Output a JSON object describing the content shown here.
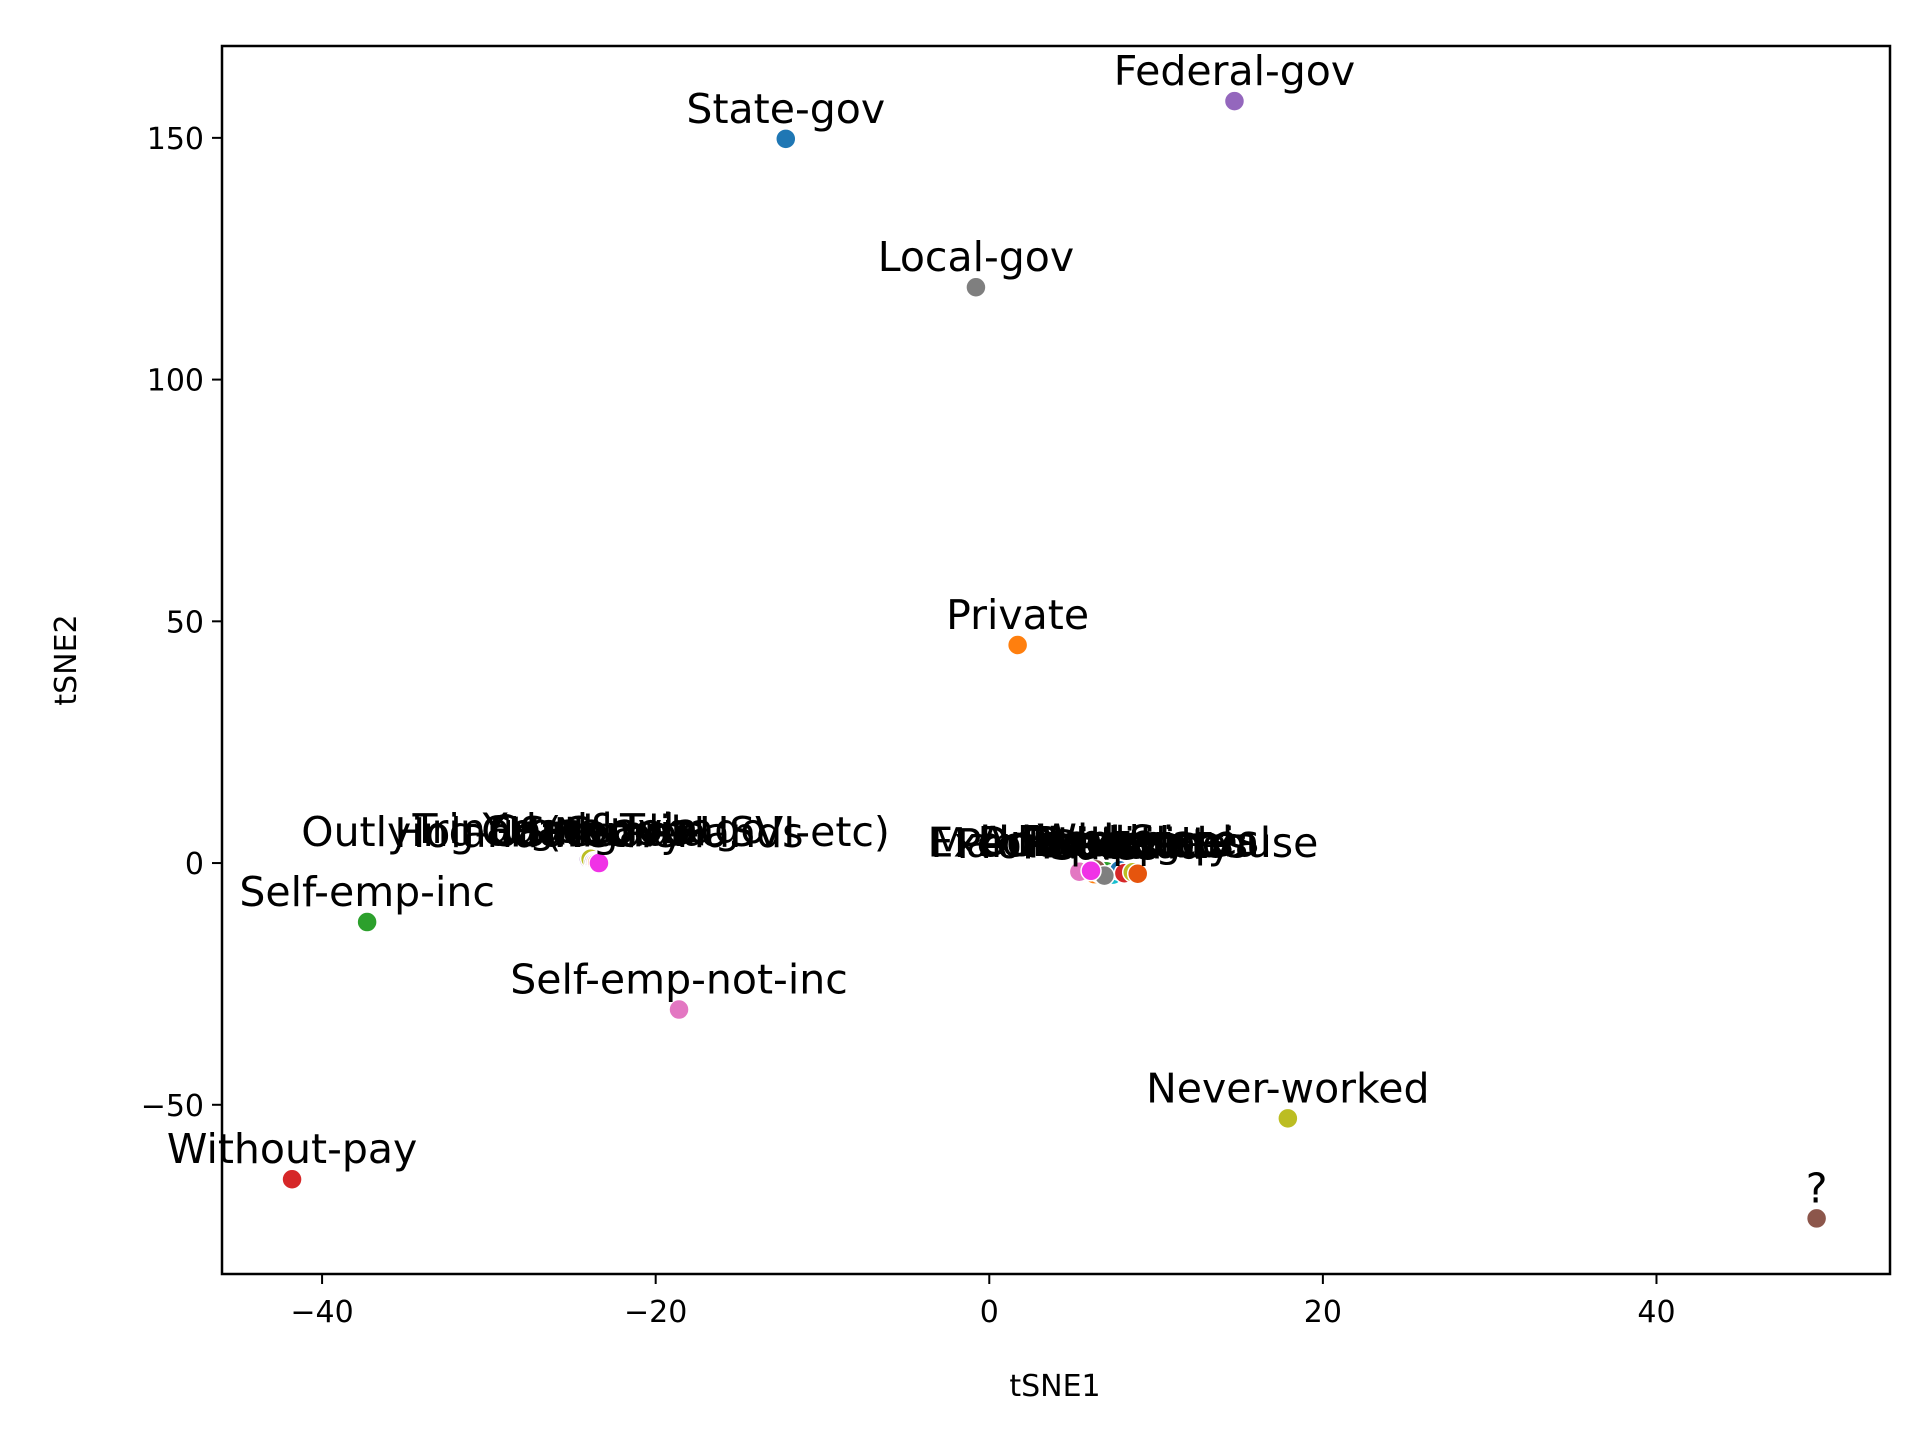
{
  "chart_data": {
    "type": "scatter",
    "title": "",
    "xlabel": "tSNE1",
    "ylabel": "tSNE2",
    "xlim": [
      -46,
      54
    ],
    "ylim": [
      -85,
      169
    ],
    "xticks": [
      -40,
      -20,
      0,
      20,
      40
    ],
    "yticks": [
      -50,
      0,
      50,
      100,
      150
    ],
    "xtick_labels": [
      "−40",
      "−20",
      "0",
      "20",
      "40"
    ],
    "ytick_labels": [
      "−50",
      "0",
      "50",
      "100",
      "150"
    ],
    "grid": false,
    "legend": "none",
    "points": [
      {
        "label": "State-gov",
        "x": -12.2,
        "y": 149.8,
        "color": "#1f77b4"
      },
      {
        "label": "Federal-gov",
        "x": 14.7,
        "y": 157.6,
        "color": "#9467bd"
      },
      {
        "label": "Local-gov",
        "x": -0.8,
        "y": 119.1,
        "color": "#7f7f7f"
      },
      {
        "label": "Private",
        "x": 1.7,
        "y": 45.1,
        "color": "#ff7f0e"
      },
      {
        "label": "Self-emp-inc",
        "x": -37.3,
        "y": -12.2,
        "color": "#2ca02c"
      },
      {
        "label": "Self-emp-not-inc",
        "x": -18.6,
        "y": -30.3,
        "color": "#e377c2"
      },
      {
        "label": "Never-worked",
        "x": 17.9,
        "y": -52.8,
        "color": "#bcbd22"
      },
      {
        "label": "Without-pay",
        "x": -41.8,
        "y": -65.4,
        "color": "#d62728"
      },
      {
        "label": "?",
        "x": 49.6,
        "y": -73.5,
        "color": "#8c564b"
      },
      {
        "label": "Trinadad&Tobago",
        "x": -24.0,
        "y": 0.8,
        "color": "#9467bd"
      },
      {
        "label": "Cambodia",
        "x": -23.8,
        "y": 0.5,
        "color": "#17becf"
      },
      {
        "label": "Yugoslavia",
        "x": -23.9,
        "y": 0.9,
        "color": "#bcbd22"
      },
      {
        "label": "Guatemala",
        "x": -23.7,
        "y": 0.3,
        "color": "#7f7f7f"
      },
      {
        "label": "Outlying-US(Guam-USVI-etc)",
        "x": -23.6,
        "y": 0.2,
        "color": "#e377c2"
      },
      {
        "label": "Hungary",
        "x": -23.5,
        "y": 0.1,
        "color": "#ff7f0e"
      },
      {
        "label": "Holand-Netherlands",
        "x": -23.4,
        "y": 0.0,
        "color": "#f032e6"
      },
      {
        "label": "Doctorate",
        "x": 5.4,
        "y": -1.8,
        "color": "#e377c2"
      },
      {
        "label": "Prof-specialty",
        "x": 6.3,
        "y": -2.3,
        "color": "#ff7f0e"
      },
      {
        "label": "Exec-managerial",
        "x": 6.6,
        "y": -2.0,
        "color": "#9467bd"
      },
      {
        "label": "Adm-clerical",
        "x": 7.0,
        "y": -1.7,
        "color": "#2ca02c"
      },
      {
        "label": "Husband",
        "x": 7.4,
        "y": -2.4,
        "color": "#17becf"
      },
      {
        "label": "United-States",
        "x": 7.8,
        "y": -1.5,
        "color": "#1f77b4"
      },
      {
        "label": "Married-civ-spouse",
        "x": 8.1,
        "y": -2.1,
        "color": "#d62728"
      },
      {
        "label": "Bachelors",
        "x": 8.6,
        "y": -1.9,
        "color": "#bcbd22"
      },
      {
        "label": "White",
        "x": 6.4,
        "y": -1.3,
        "color": "#8c564b"
      },
      {
        "label": "Sales",
        "x": 6.9,
        "y": -2.6,
        "color": "#7f7f7f"
      },
      {
        "label": "Philippines",
        "x": 8.9,
        "y": -2.2,
        "color": "#e6550d"
      },
      {
        "label": "Female",
        "x": 6.1,
        "y": -1.6,
        "color": "#f032e6"
      }
    ],
    "labelled_points": [
      "State-gov",
      "Federal-gov",
      "Local-gov",
      "Private",
      "Self-emp-inc",
      "Self-emp-not-inc",
      "Never-worked",
      "Without-pay",
      "?",
      "Trinadad&Tobago",
      "Cambodia",
      "Yugoslavia",
      "Guatemala",
      "Outlying-US(Guam-USVI-etc)",
      "Hungary",
      "Holand-Netherlands",
      "Doctorate",
      "Prof-specialty",
      "Exec-managerial",
      "Adm-clerical",
      "Husband",
      "United-States",
      "Married-civ-spouse",
      "Bachelors",
      "White",
      "Sales",
      "Philippines",
      "Female"
    ]
  }
}
